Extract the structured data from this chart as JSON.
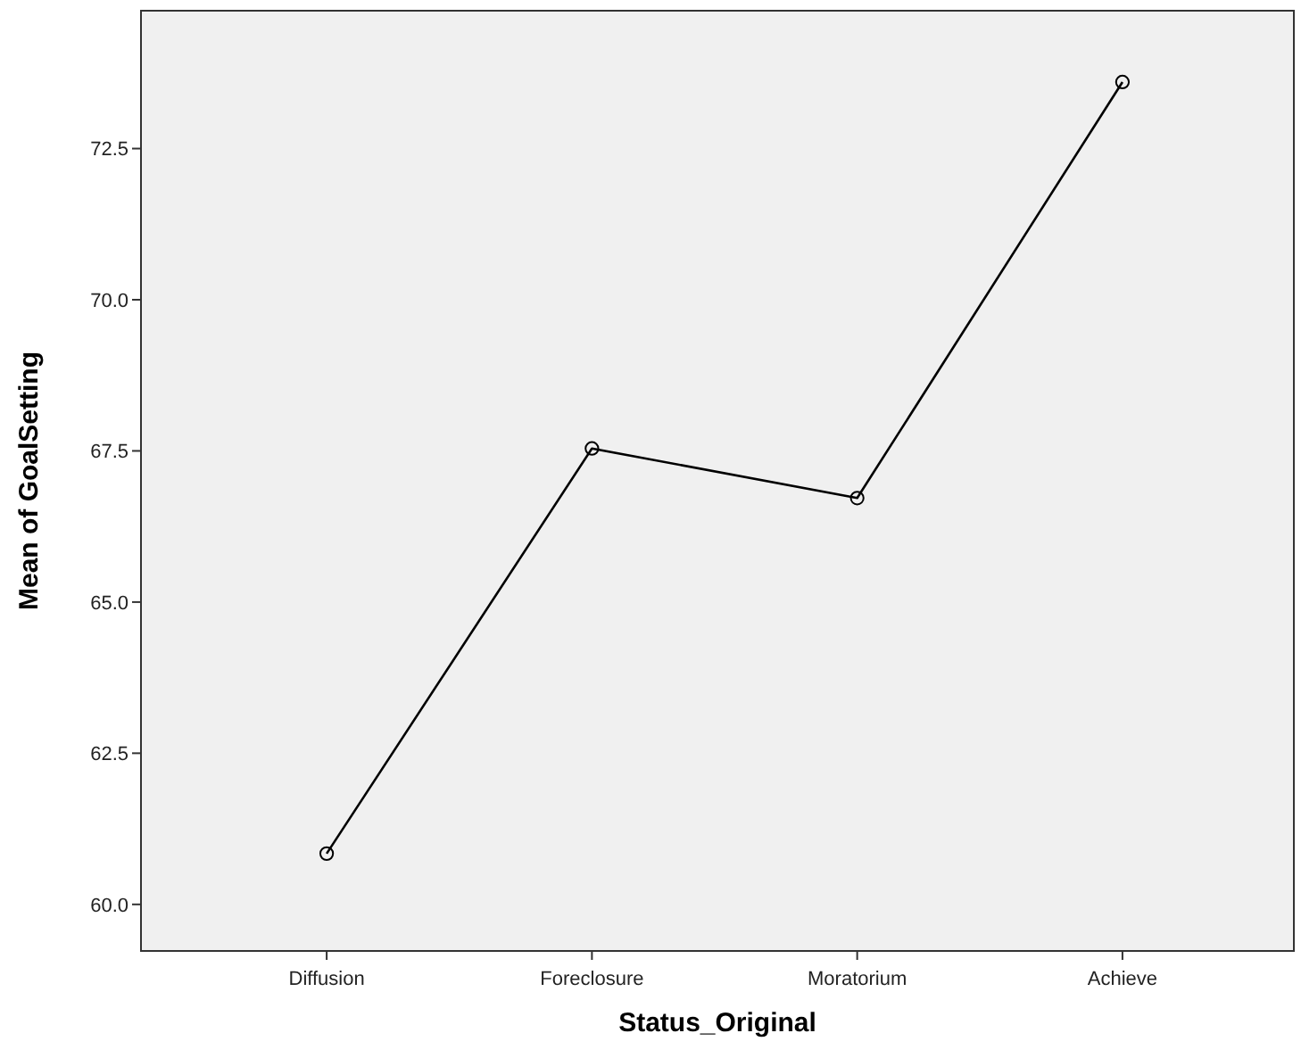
{
  "chart_data": {
    "type": "line",
    "xlabel": "Status_Original",
    "ylabel": "Mean of GoalSetting",
    "categories": [
      "Diffusion",
      "Foreclosure",
      "Moratorium",
      "Achieve"
    ],
    "series": [
      {
        "color": "#000000",
        "values": [
          60.84,
          67.54,
          66.72,
          73.6
        ]
      }
    ],
    "ylim": [
      59.23,
      74.78
    ],
    "yticks": [
      {
        "value": 60,
        "label": "60.0"
      },
      {
        "value": 62.5,
        "label": "62.5"
      },
      {
        "value": 65,
        "label": "65.0"
      },
      {
        "value": 67.5,
        "label": "67.5"
      },
      {
        "value": 70,
        "label": "70.0"
      },
      {
        "value": 72.5,
        "label": "72.5"
      }
    ],
    "marker": "circle",
    "grid": false
  }
}
